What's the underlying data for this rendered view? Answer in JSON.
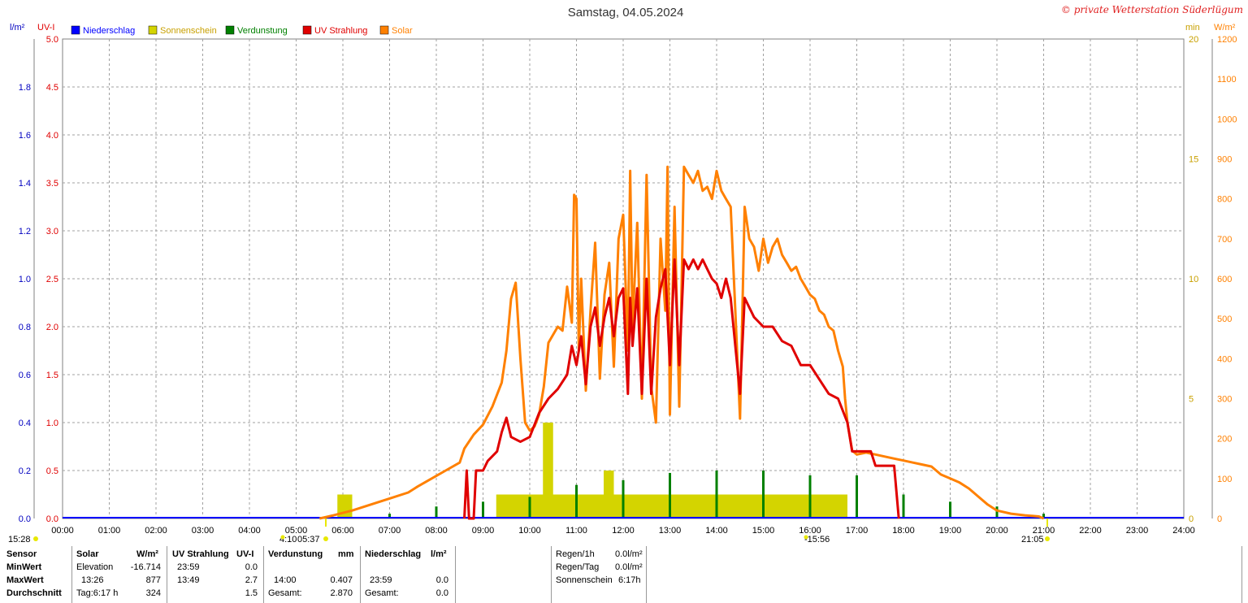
{
  "header": {
    "title": "Samstag, 04.05.2024",
    "copyright": "© private Wetterstation Süderlügum"
  },
  "axis_units": {
    "rain": "l/m²",
    "uv": "UV-I",
    "sun": "min",
    "solar": "W/m²"
  },
  "legend": [
    {
      "label": "Niederschlag",
      "color": "#0000ff"
    },
    {
      "label": "Sonnenschein",
      "color": "#d4d400"
    },
    {
      "label": "Verdunstung",
      "color": "#008000"
    },
    {
      "label": "UV Strahlung",
      "color": "#e00000"
    },
    {
      "label": "Solar",
      "color": "#ff8000"
    }
  ],
  "sun_events": {
    "left_time": "15:28",
    "twilight_start": "4:10",
    "sunrise": "05:37",
    "noon": "-15:56",
    "sunset": "21:05"
  },
  "chart_data": {
    "type": "line",
    "title": "Samstag, 04.05.2024",
    "x_ticks": [
      "00:00",
      "01:00",
      "02:00",
      "03:00",
      "04:00",
      "05:00",
      "06:00",
      "07:00",
      "08:00",
      "09:00",
      "10:00",
      "11:00",
      "12:00",
      "13:00",
      "14:00",
      "15:00",
      "16:00",
      "17:00",
      "18:00",
      "19:00",
      "20:00",
      "21:00",
      "22:00",
      "23:00",
      "24:00"
    ],
    "x_range_hours": [
      0,
      24
    ],
    "y_axes": {
      "rain": {
        "unit": "l/m²",
        "range": [
          0,
          2.0
        ],
        "ticks": [
          "0.0",
          "0.2",
          "0.4",
          "0.6",
          "0.8",
          "1.0",
          "1.2",
          "1.4",
          "1.6",
          "1.8"
        ]
      },
      "uv": {
        "unit": "UV-I",
        "range": [
          0,
          5.0
        ],
        "ticks": [
          "0.0",
          "0.5",
          "1.0",
          "1.5",
          "2.0",
          "2.5",
          "3.0",
          "3.5",
          "4.0",
          "4.5",
          "5.0"
        ]
      },
      "sun": {
        "unit": "min",
        "range": [
          0,
          20
        ],
        "ticks": [
          "0",
          "5",
          "10",
          "15",
          "20"
        ]
      },
      "solar": {
        "unit": "W/m²",
        "range": [
          0,
          1200
        ],
        "ticks": [
          "0",
          "100",
          "200",
          "300",
          "400",
          "500",
          "600",
          "700",
          "800",
          "900",
          "1000",
          "1100",
          "1200"
        ]
      }
    },
    "grid": true,
    "legend_position": "top-left",
    "series": [
      {
        "name": "Solar",
        "axis": "solar",
        "color": "#ff8000",
        "points": [
          [
            5.5,
            0
          ],
          [
            5.8,
            8
          ],
          [
            6.2,
            20
          ],
          [
            6.6,
            35
          ],
          [
            7.0,
            50
          ],
          [
            7.4,
            65
          ],
          [
            7.6,
            80
          ],
          [
            7.9,
            100
          ],
          [
            8.2,
            120
          ],
          [
            8.5,
            140
          ],
          [
            8.6,
            175
          ],
          [
            8.8,
            210
          ],
          [
            9.0,
            235
          ],
          [
            9.2,
            280
          ],
          [
            9.4,
            340
          ],
          [
            9.5,
            420
          ],
          [
            9.6,
            550
          ],
          [
            9.7,
            590
          ],
          [
            9.8,
            400
          ],
          [
            9.9,
            240
          ],
          [
            10.0,
            220
          ],
          [
            10.1,
            230
          ],
          [
            10.2,
            260
          ],
          [
            10.3,
            330
          ],
          [
            10.4,
            440
          ],
          [
            10.5,
            460
          ],
          [
            10.6,
            480
          ],
          [
            10.7,
            470
          ],
          [
            10.8,
            580
          ],
          [
            10.9,
            490
          ],
          [
            10.95,
            810
          ],
          [
            11.0,
            800
          ],
          [
            11.05,
            420
          ],
          [
            11.1,
            600
          ],
          [
            11.2,
            320
          ],
          [
            11.3,
            520
          ],
          [
            11.4,
            690
          ],
          [
            11.5,
            350
          ],
          [
            11.6,
            560
          ],
          [
            11.7,
            640
          ],
          [
            11.8,
            380
          ],
          [
            11.9,
            700
          ],
          [
            12.0,
            760
          ],
          [
            12.1,
            420
          ],
          [
            12.15,
            870
          ],
          [
            12.2,
            480
          ],
          [
            12.3,
            740
          ],
          [
            12.4,
            300
          ],
          [
            12.5,
            860
          ],
          [
            12.6,
            330
          ],
          [
            12.7,
            240
          ],
          [
            12.8,
            700
          ],
          [
            12.9,
            520
          ],
          [
            12.95,
            880
          ],
          [
            13.0,
            260
          ],
          [
            13.1,
            780
          ],
          [
            13.2,
            280
          ],
          [
            13.3,
            880
          ],
          [
            13.4,
            860
          ],
          [
            13.5,
            840
          ],
          [
            13.6,
            870
          ],
          [
            13.7,
            820
          ],
          [
            13.8,
            830
          ],
          [
            13.9,
            800
          ],
          [
            14.0,
            870
          ],
          [
            14.1,
            820
          ],
          [
            14.2,
            800
          ],
          [
            14.3,
            780
          ],
          [
            14.4,
            520
          ],
          [
            14.5,
            250
          ],
          [
            14.6,
            780
          ],
          [
            14.7,
            700
          ],
          [
            14.8,
            680
          ],
          [
            14.9,
            620
          ],
          [
            15.0,
            700
          ],
          [
            15.1,
            640
          ],
          [
            15.2,
            680
          ],
          [
            15.3,
            700
          ],
          [
            15.4,
            660
          ],
          [
            15.5,
            640
          ],
          [
            15.6,
            620
          ],
          [
            15.7,
            630
          ],
          [
            15.8,
            600
          ],
          [
            15.9,
            580
          ],
          [
            16.0,
            560
          ],
          [
            16.1,
            550
          ],
          [
            16.2,
            520
          ],
          [
            16.3,
            510
          ],
          [
            16.4,
            480
          ],
          [
            16.5,
            470
          ],
          [
            16.6,
            420
          ],
          [
            16.7,
            380
          ],
          [
            16.75,
            300
          ],
          [
            16.8,
            240
          ],
          [
            16.9,
            170
          ],
          [
            17.0,
            160
          ],
          [
            17.2,
            165
          ],
          [
            17.4,
            160
          ],
          [
            17.6,
            155
          ],
          [
            17.8,
            150
          ],
          [
            18.0,
            145
          ],
          [
            18.2,
            140
          ],
          [
            18.4,
            135
          ],
          [
            18.6,
            130
          ],
          [
            18.8,
            110
          ],
          [
            19.0,
            100
          ],
          [
            19.2,
            90
          ],
          [
            19.4,
            75
          ],
          [
            19.6,
            55
          ],
          [
            19.8,
            35
          ],
          [
            20.0,
            20
          ],
          [
            20.3,
            12
          ],
          [
            20.6,
            8
          ],
          [
            20.9,
            5
          ],
          [
            21.0,
            0
          ]
        ]
      },
      {
        "name": "UV Strahlung",
        "axis": "uv",
        "color": "#e00000",
        "points": [
          [
            8.6,
            0
          ],
          [
            8.65,
            0.5
          ],
          [
            8.7,
            0
          ],
          [
            8.8,
            0
          ],
          [
            8.85,
            0.5
          ],
          [
            9.0,
            0.5
          ],
          [
            9.1,
            0.6
          ],
          [
            9.3,
            0.7
          ],
          [
            9.4,
            0.9
          ],
          [
            9.5,
            1.05
          ],
          [
            9.6,
            0.85
          ],
          [
            9.8,
            0.8
          ],
          [
            10.0,
            0.85
          ],
          [
            10.2,
            1.1
          ],
          [
            10.4,
            1.25
          ],
          [
            10.6,
            1.35
          ],
          [
            10.8,
            1.5
          ],
          [
            10.9,
            1.8
          ],
          [
            11.0,
            1.6
          ],
          [
            11.1,
            1.9
          ],
          [
            11.2,
            1.4
          ],
          [
            11.3,
            2.0
          ],
          [
            11.4,
            2.2
          ],
          [
            11.5,
            1.8
          ],
          [
            11.6,
            2.1
          ],
          [
            11.7,
            2.3
          ],
          [
            11.8,
            1.9
          ],
          [
            11.9,
            2.3
          ],
          [
            12.0,
            2.4
          ],
          [
            12.1,
            1.3
          ],
          [
            12.15,
            2.3
          ],
          [
            12.2,
            1.8
          ],
          [
            12.3,
            2.4
          ],
          [
            12.4,
            1.3
          ],
          [
            12.5,
            2.5
          ],
          [
            12.6,
            1.3
          ],
          [
            12.7,
            2.1
          ],
          [
            12.8,
            2.4
          ],
          [
            12.9,
            2.6
          ],
          [
            13.0,
            1.6
          ],
          [
            13.1,
            2.7
          ],
          [
            13.2,
            1.6
          ],
          [
            13.3,
            2.7
          ],
          [
            13.4,
            2.6
          ],
          [
            13.5,
            2.7
          ],
          [
            13.6,
            2.6
          ],
          [
            13.7,
            2.7
          ],
          [
            13.8,
            2.6
          ],
          [
            13.9,
            2.5
          ],
          [
            14.0,
            2.45
          ],
          [
            14.1,
            2.3
          ],
          [
            14.2,
            2.5
          ],
          [
            14.3,
            2.3
          ],
          [
            14.4,
            1.8
          ],
          [
            14.5,
            1.3
          ],
          [
            14.6,
            2.3
          ],
          [
            14.8,
            2.1
          ],
          [
            15.0,
            2.0
          ],
          [
            15.2,
            2.0
          ],
          [
            15.4,
            1.85
          ],
          [
            15.6,
            1.8
          ],
          [
            15.8,
            1.6
          ],
          [
            16.0,
            1.6
          ],
          [
            16.2,
            1.45
          ],
          [
            16.4,
            1.3
          ],
          [
            16.6,
            1.25
          ],
          [
            16.8,
            1.0
          ],
          [
            16.9,
            0.7
          ],
          [
            17.0,
            0.7
          ],
          [
            17.3,
            0.7
          ],
          [
            17.4,
            0.55
          ],
          [
            17.8,
            0.55
          ],
          [
            17.9,
            0.0
          ]
        ]
      }
    ],
    "bar_series": [
      {
        "name": "Sonnenschein",
        "axis": "sun",
        "color": "#d4d400",
        "values_min_per_interval": [
          [
            5.9,
            1
          ],
          [
            6.0,
            1
          ],
          [
            9.3,
            1
          ],
          [
            9.4,
            1
          ],
          [
            9.5,
            1
          ],
          [
            9.6,
            1
          ],
          [
            9.8,
            1
          ],
          [
            10.0,
            1
          ],
          [
            10.1,
            1
          ],
          [
            10.2,
            1
          ],
          [
            10.3,
            4
          ],
          [
            10.4,
            1
          ],
          [
            10.6,
            1
          ],
          [
            10.8,
            1
          ],
          [
            11.0,
            1
          ],
          [
            11.2,
            1
          ],
          [
            11.4,
            1
          ],
          [
            11.6,
            2
          ],
          [
            11.8,
            1
          ],
          [
            12.0,
            1
          ],
          [
            12.2,
            1
          ],
          [
            12.4,
            1
          ],
          [
            12.6,
            1
          ],
          [
            12.8,
            1
          ],
          [
            13.0,
            1
          ],
          [
            13.2,
            1
          ],
          [
            13.4,
            1
          ],
          [
            13.6,
            1
          ],
          [
            13.8,
            1
          ],
          [
            14.0,
            1
          ],
          [
            14.2,
            1
          ],
          [
            14.4,
            1
          ],
          [
            14.6,
            1
          ],
          [
            14.8,
            1
          ],
          [
            15.0,
            1
          ],
          [
            15.2,
            1
          ],
          [
            15.4,
            1
          ],
          [
            15.6,
            1
          ],
          [
            15.8,
            1
          ],
          [
            16.0,
            1
          ],
          [
            16.2,
            1
          ],
          [
            16.4,
            1
          ],
          [
            16.6,
            1
          ]
        ]
      },
      {
        "name": "Verdunstung",
        "axis": "rain",
        "color": "#008000",
        "values_mm": [
          [
            7.0,
            0.02
          ],
          [
            8.0,
            0.05
          ],
          [
            9.0,
            0.07
          ],
          [
            10.0,
            0.09
          ],
          [
            11.0,
            0.14
          ],
          [
            12.0,
            0.16
          ],
          [
            13.0,
            0.19
          ],
          [
            14.0,
            0.2
          ],
          [
            15.0,
            0.2
          ],
          [
            16.0,
            0.18
          ],
          [
            17.0,
            0.18
          ],
          [
            18.0,
            0.1
          ],
          [
            19.0,
            0.07
          ],
          [
            20.0,
            0.05
          ],
          [
            21.0,
            0.02
          ]
        ]
      }
    ]
  },
  "stats": {
    "headers": {
      "sensor": "Sensor",
      "solar": "Solar",
      "solar_unit": "W/m²",
      "uv": "UV Strahlung",
      "uv_unit": "UV-I",
      "verd": "Verdunstung",
      "verd_unit": "mm",
      "nieder": "Niederschlag",
      "nieder_unit": "l/m²"
    },
    "rows": [
      {
        "label": "MinWert",
        "solar_time": "Elevation",
        "solar_val": "-16.714",
        "uv_time": "23:59",
        "uv_val": "0.0",
        "verd_time": "",
        "verd_val": "",
        "nieder_time": "",
        "nieder_val": ""
      },
      {
        "label": "MaxWert",
        "solar_time": "13:26",
        "solar_val": "877",
        "uv_time": "13:49",
        "uv_val": "2.7",
        "verd_time": "14:00",
        "verd_val": "0.407",
        "nieder_time": "23:59",
        "nieder_val": "0.0"
      },
      {
        "label": "Durchschnitt",
        "solar_time": "Tag:6:17 h",
        "solar_val": "324",
        "uv_time": "",
        "uv_val": "1.5",
        "verd_time": "Gesamt:",
        "verd_val": "2.870",
        "nieder_time": "Gesamt:",
        "nieder_val": "0.0"
      }
    ],
    "extra": [
      {
        "label": "Regen/1h",
        "value": "0.0l/m²"
      },
      {
        "label": "Regen/Tag",
        "value": "0.0l/m²"
      },
      {
        "label": "Sonnenschein",
        "value": "6:17h"
      }
    ]
  }
}
